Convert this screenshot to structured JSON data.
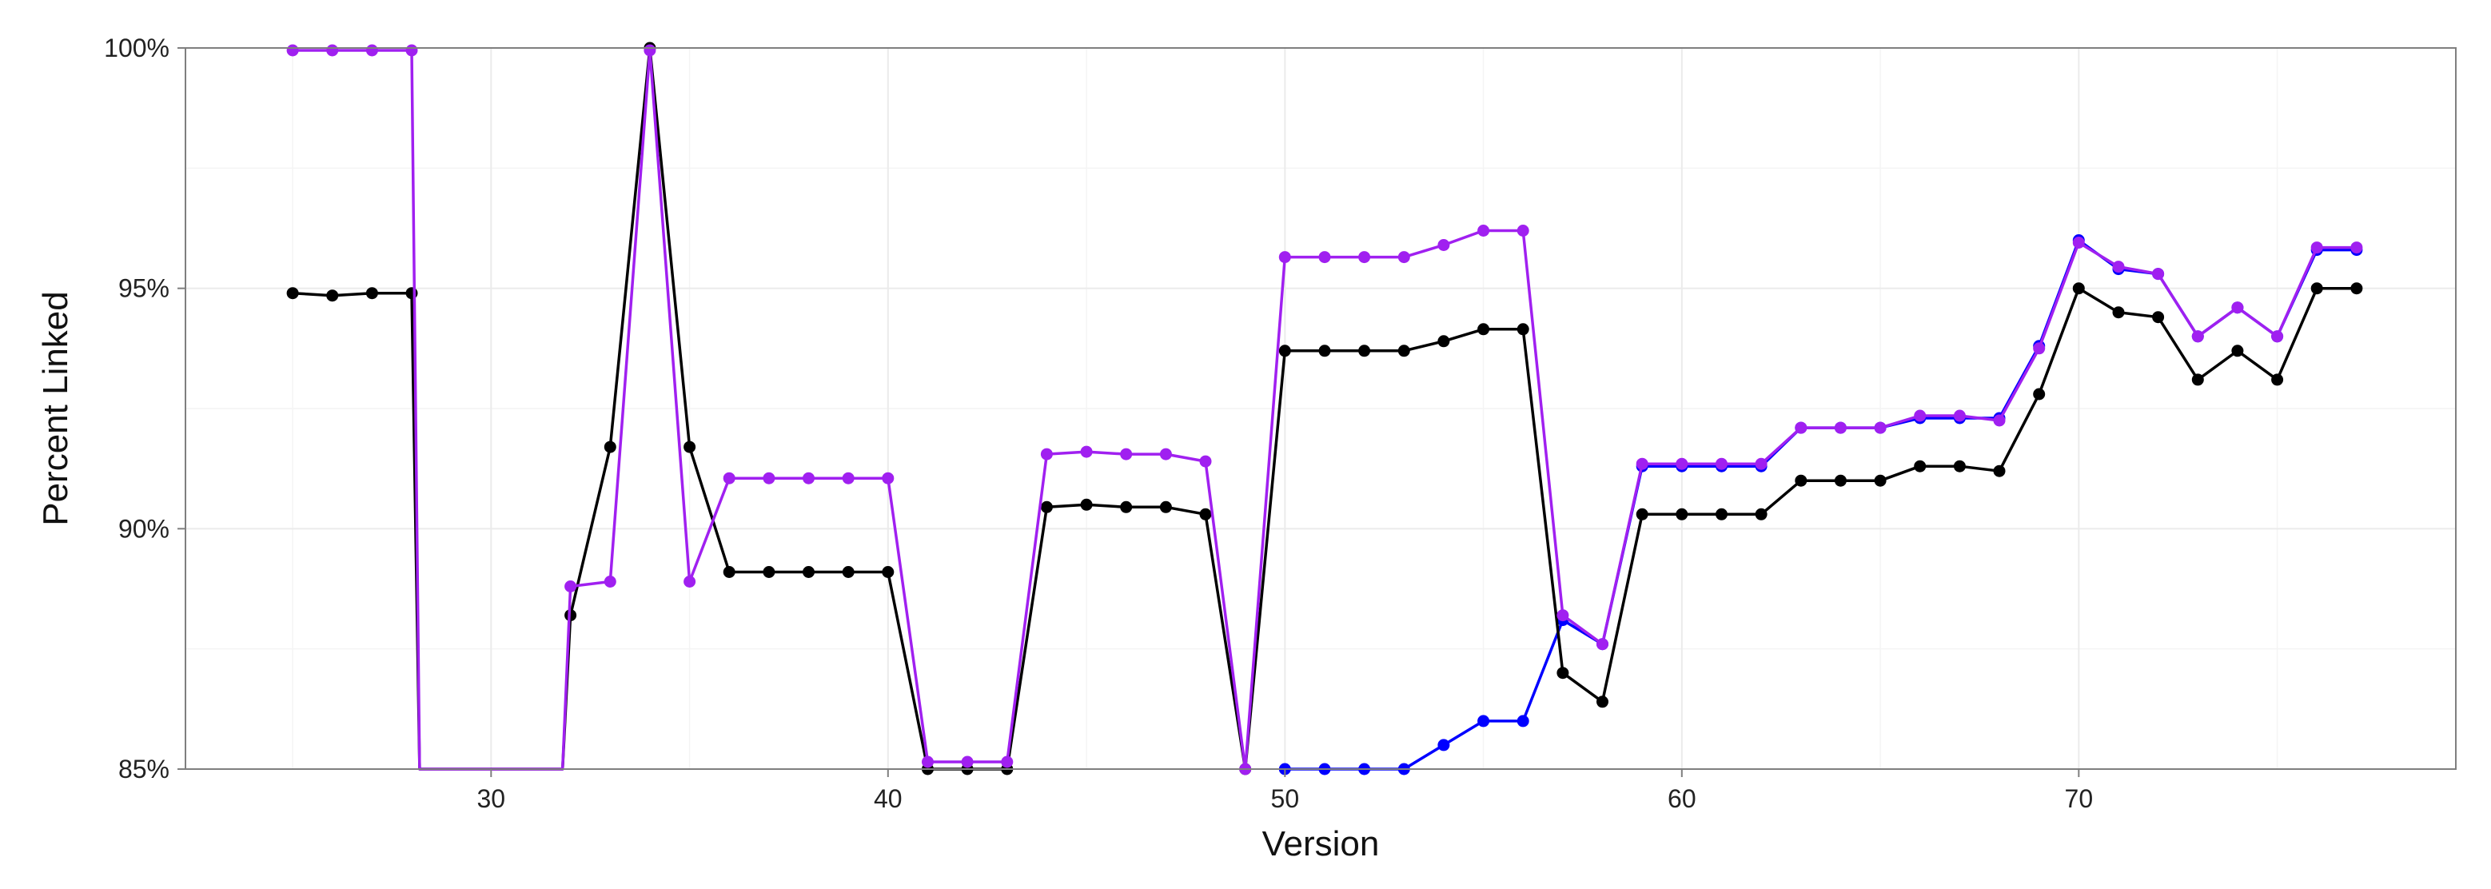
{
  "chart_data": {
    "type": "line",
    "title": "",
    "xlabel": "Version",
    "ylabel": "Percent Linked",
    "xlim": [
      22.3,
      79.5
    ],
    "ylim": [
      85,
      100
    ],
    "x_ticks": [
      30,
      40,
      50,
      60,
      70
    ],
    "y_ticks": [
      85,
      90,
      95,
      100
    ],
    "y_tick_labels": [
      "85%",
      "90%",
      "95%",
      "100%"
    ],
    "grid": true,
    "legend": "none",
    "series": [
      {
        "color": "#0000ff",
        "points": [
          [
            50,
            85.0
          ],
          [
            51,
            85.0
          ],
          [
            52,
            85.0
          ],
          [
            53,
            85.0
          ],
          [
            54,
            85.5
          ],
          [
            55,
            86.0
          ],
          [
            56,
            86.0
          ],
          [
            57,
            88.1
          ],
          [
            58,
            87.6
          ],
          [
            59,
            91.3
          ],
          [
            60,
            91.3
          ],
          [
            61,
            91.3
          ],
          [
            62,
            91.3
          ],
          [
            63,
            92.1
          ],
          [
            64,
            92.1
          ],
          [
            65,
            92.1
          ],
          [
            66,
            92.3
          ],
          [
            67,
            92.3
          ],
          [
            68,
            92.3
          ],
          [
            69,
            93.8
          ],
          [
            70,
            96.0
          ],
          [
            71,
            95.4
          ],
          [
            72,
            95.3
          ],
          [
            73,
            94.0
          ],
          [
            74,
            94.6
          ],
          [
            75,
            94.0
          ],
          [
            76,
            95.8
          ],
          [
            77,
            95.8
          ]
        ]
      },
      {
        "color": "#000000",
        "points": [
          [
            25,
            94.9
          ],
          [
            26,
            94.85
          ],
          [
            27,
            94.9
          ],
          [
            28,
            94.9
          ],
          [
            28.2,
            85.0
          ],
          [
            31.8,
            85.0
          ],
          [
            32,
            88.2
          ],
          [
            33,
            91.7
          ],
          [
            34,
            100.0
          ],
          [
            35,
            91.7
          ],
          [
            36,
            89.1
          ],
          [
            37,
            89.1
          ],
          [
            38,
            89.1
          ],
          [
            39,
            89.1
          ],
          [
            40,
            89.1
          ],
          [
            41,
            85.0
          ],
          [
            42,
            85.0
          ],
          [
            43,
            85.0
          ],
          [
            44,
            90.45
          ],
          [
            45,
            90.5
          ],
          [
            46,
            90.45
          ],
          [
            47,
            90.45
          ],
          [
            48,
            90.3
          ],
          [
            49,
            85.0
          ],
          [
            50,
            93.7
          ],
          [
            51,
            93.7
          ],
          [
            52,
            93.7
          ],
          [
            53,
            93.7
          ],
          [
            54,
            93.9
          ],
          [
            55,
            94.15
          ],
          [
            56,
            94.15
          ],
          [
            57,
            87.0
          ],
          [
            58,
            86.4
          ],
          [
            59,
            90.3
          ],
          [
            60,
            90.3
          ],
          [
            61,
            90.3
          ],
          [
            62,
            90.3
          ],
          [
            63,
            91.0
          ],
          [
            64,
            91.0
          ],
          [
            65,
            91.0
          ],
          [
            66,
            91.3
          ],
          [
            67,
            91.3
          ],
          [
            68,
            91.2
          ],
          [
            69,
            92.8
          ],
          [
            70,
            95.0
          ],
          [
            71,
            94.5
          ],
          [
            72,
            94.4
          ],
          [
            73,
            93.1
          ],
          [
            74,
            93.7
          ],
          [
            75,
            93.1
          ],
          [
            76,
            95.0
          ],
          [
            77,
            95.0
          ]
        ]
      },
      {
        "color": "#a020f0",
        "points": [
          [
            25,
            99.95
          ],
          [
            26,
            99.95
          ],
          [
            27,
            99.95
          ],
          [
            28,
            99.95
          ],
          [
            28.2,
            85.0
          ],
          [
            31.8,
            85.0
          ],
          [
            32,
            88.8
          ],
          [
            33,
            88.9
          ],
          [
            34,
            99.95
          ],
          [
            35,
            88.9
          ],
          [
            36,
            91.05
          ],
          [
            37,
            91.05
          ],
          [
            38,
            91.05
          ],
          [
            39,
            91.05
          ],
          [
            40,
            91.05
          ],
          [
            41,
            85.15
          ],
          [
            42,
            85.15
          ],
          [
            43,
            85.15
          ],
          [
            44,
            91.55
          ],
          [
            45,
            91.6
          ],
          [
            46,
            91.55
          ],
          [
            47,
            91.55
          ],
          [
            48,
            91.4
          ],
          [
            49,
            85.0
          ],
          [
            50,
            95.65
          ],
          [
            51,
            95.65
          ],
          [
            52,
            95.65
          ],
          [
            53,
            95.65
          ],
          [
            54,
            95.9
          ],
          [
            55,
            96.2
          ],
          [
            56,
            96.2
          ],
          [
            57,
            88.2
          ],
          [
            58,
            87.6
          ],
          [
            59,
            91.35
          ],
          [
            60,
            91.35
          ],
          [
            61,
            91.35
          ],
          [
            62,
            91.35
          ],
          [
            63,
            92.1
          ],
          [
            64,
            92.1
          ],
          [
            65,
            92.1
          ],
          [
            66,
            92.35
          ],
          [
            67,
            92.35
          ],
          [
            68,
            92.25
          ],
          [
            69,
            93.75
          ],
          [
            70,
            95.95
          ],
          [
            71,
            95.45
          ],
          [
            72,
            95.3
          ],
          [
            73,
            94.0
          ],
          [
            74,
            94.6
          ],
          [
            75,
            94.0
          ],
          [
            76,
            95.85
          ],
          [
            77,
            95.85
          ]
        ]
      }
    ]
  }
}
